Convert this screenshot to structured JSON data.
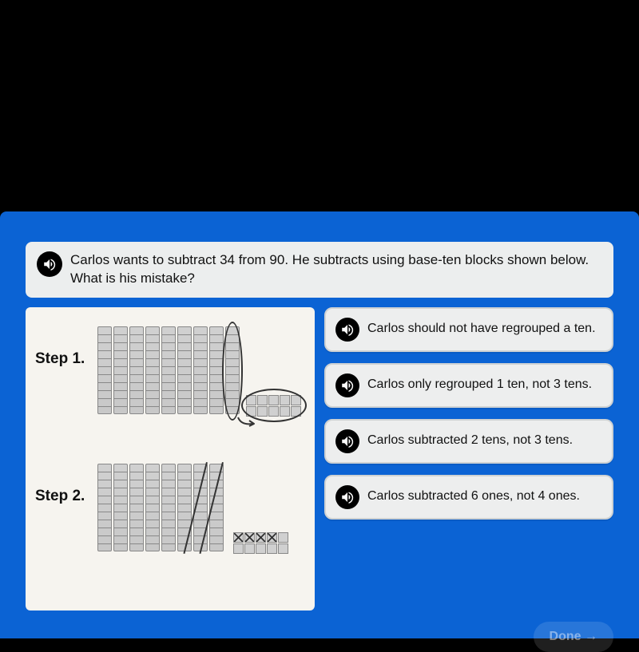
{
  "colors": {
    "page_bg": "#000000",
    "app_bg": "#0b63d4",
    "panel_bg": "#f6f4ef",
    "option_bg": "#edeeee",
    "question_bg": "#eceeee",
    "text": "#111111",
    "speaker_bg": "#000000",
    "block_fill": "#d0d0d0",
    "block_border": "#888888"
  },
  "question": "Carlos wants to subtract 34 from 90. He subtracts using base-ten blocks shown below. What is his mistake?",
  "steps": {
    "step1_label": "Step 1.",
    "step2_label": "Step 2.",
    "step1": {
      "rods": 9,
      "ones": 10,
      "circled_rod_index": 8,
      "circled_ones": true
    },
    "step2": {
      "rods": 8,
      "slashed_rods": [
        6,
        7
      ],
      "ones": 10,
      "crossed_ones": [
        0,
        1,
        2,
        3
      ]
    }
  },
  "options": [
    "Carlos should not have regrouped a ten.",
    "Carlos only regrouped 1 ten, not 3 tens.",
    "Carlos subtracted 2 tens, not 3 tens.",
    "Carlos subtracted 6 ones, not 4 ones."
  ],
  "done_label": "Done →"
}
